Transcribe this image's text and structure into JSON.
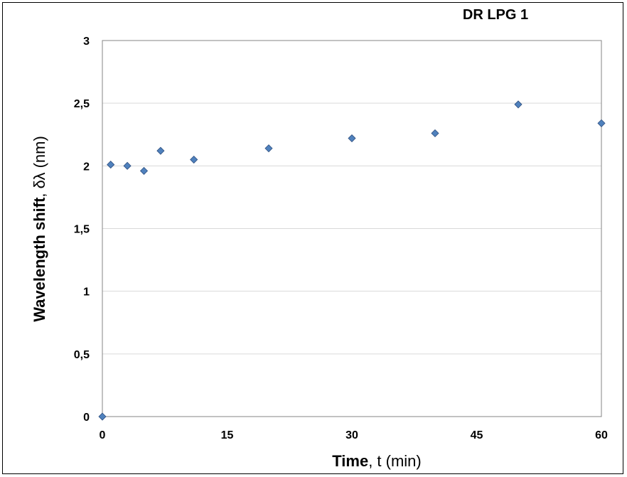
{
  "chart_data": {
    "type": "scatter",
    "title": "DR LPG 1",
    "xlabel": {
      "bold": "Time",
      "rest": ", t (min)"
    },
    "ylabel": {
      "bold": "Wavelength shift",
      "rest": ", δλ (nm)"
    },
    "xlim": [
      0,
      60
    ],
    "ylim": [
      0,
      3
    ],
    "xticks": [
      0,
      15,
      30,
      45,
      60
    ],
    "xtick_labels": [
      "0",
      "15",
      "30",
      "45",
      "60"
    ],
    "yticks": [
      0,
      0.5,
      1,
      1.5,
      2,
      2.5,
      3
    ],
    "ytick_labels": [
      "0",
      "0,5",
      "1",
      "1,5",
      "2",
      "2,5",
      "3"
    ],
    "grid": "horizontal",
    "marker": "diamond",
    "marker_color": "#4F81BD",
    "series": [
      {
        "points": [
          [
            0,
            0
          ],
          [
            1,
            2.01
          ],
          [
            3,
            2.0
          ],
          [
            5,
            1.96
          ],
          [
            7,
            2.12
          ],
          [
            11,
            2.05
          ],
          [
            20,
            2.14
          ],
          [
            30,
            2.22
          ],
          [
            40,
            2.26
          ],
          [
            50,
            2.49
          ],
          [
            60,
            2.34
          ]
        ]
      }
    ]
  }
}
